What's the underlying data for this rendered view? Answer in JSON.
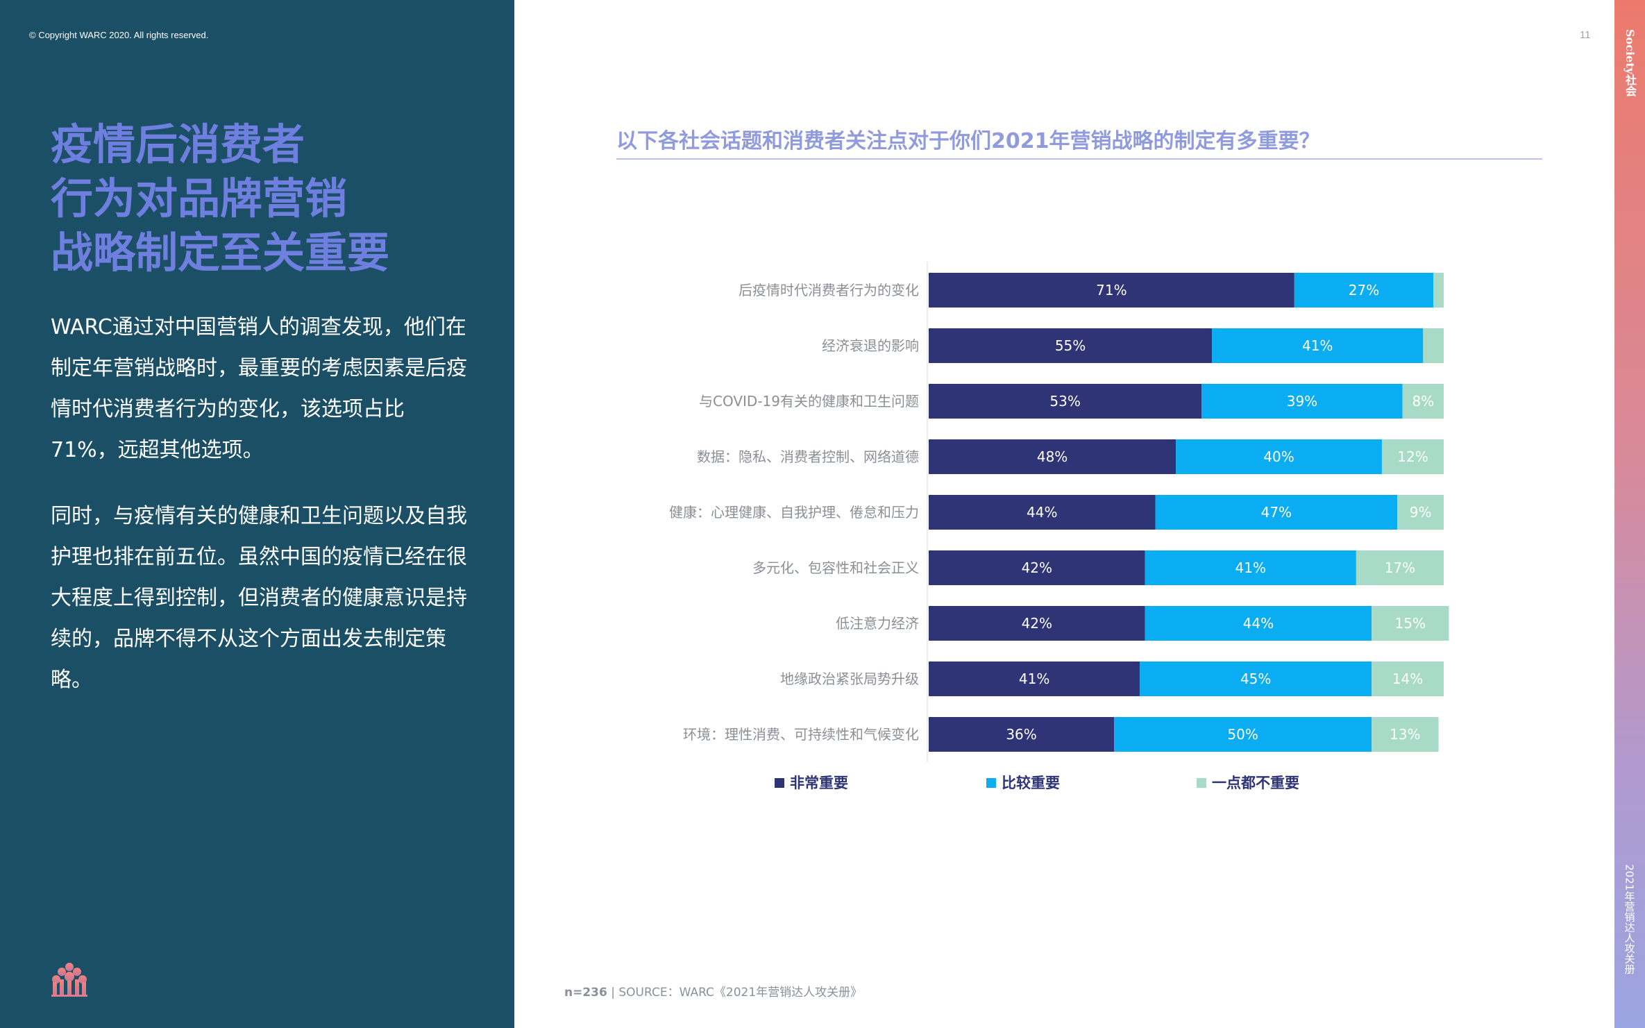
{
  "copyright": "© Copyright WARC 2020. All rights reserved.",
  "headline": [
    "疫情后消费者",
    "行为对品牌营销",
    "战略制定至关重要"
  ],
  "paragraphs": [
    "WARC通过对中国营销人的调查发现，他们在制定年营销战略时，最重要的考虑因素是后疫情时代消费者行为的变化，该选项占比71%，远超其他选项。",
    "同时，与疫情有关的健康和卫生问题以及自我护理也排在前五位。虽然中国的疫情已经在很大程度上得到控制，但消费者的健康意识是持续的，品牌不得不从这个方面出发去制定策略。"
  ],
  "page_number": "11",
  "side_label_top": "Society社会",
  "side_label_bottom": "2021年营销达人攻关册",
  "footer": {
    "n": "n=236",
    "source": "| SOURCE：WARC《2021年营销达人攻关册》"
  },
  "colors": {
    "very_important": "#2e3476",
    "somewhat_important": "#0aacf2",
    "not_important": "#a7dbc7"
  },
  "logo_icon": "tree-logo-icon",
  "chart_data": {
    "type": "bar",
    "orientation": "horizontal",
    "stacked": true,
    "title": "以下各社会话题和消费者关注点对于你们2021年营销战略的制定有多重要？",
    "categories": [
      "后疫情时代消费者行为的变化",
      "经济衰退的影响",
      "与COVID-19有关的健康和卫生问题",
      "数据：隐私、消费者控制、网络道德",
      "健康：心理健康、自我护理、倦怠和压力",
      "多元化、包容性和社会正义",
      "低注意力经济",
      "地缘政治紧张局势升级",
      "环境：理性消费、可持续性和气候变化"
    ],
    "series": [
      {
        "name": "非常重要",
        "values": [
          71,
          55,
          53,
          48,
          44,
          42,
          42,
          41,
          36
        ],
        "labels": [
          "71%",
          "55%",
          "53%",
          "48%",
          "44%",
          "42%",
          "42%",
          "41%",
          "36%"
        ]
      },
      {
        "name": "比较重要",
        "values": [
          27,
          41,
          39,
          40,
          47,
          41,
          44,
          45,
          50
        ],
        "labels": [
          "27%",
          "41%",
          "39%",
          "40%",
          "47%",
          "41%",
          "44%",
          "45%",
          "50%"
        ]
      },
      {
        "name": "一点都不重要",
        "values": [
          2,
          4,
          8,
          12,
          9,
          17,
          15,
          14,
          13
        ],
        "labels": [
          "",
          "",
          "8%",
          "12%",
          "9%",
          "17%",
          "15%",
          "14%",
          "13%"
        ]
      }
    ],
    "xlim": [
      0,
      100
    ],
    "legend": "bottom"
  }
}
